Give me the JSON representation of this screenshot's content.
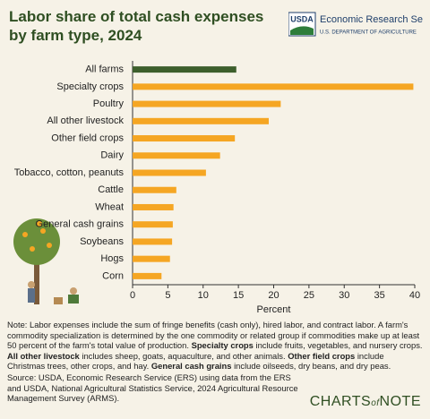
{
  "chart_data": {
    "type": "hbar",
    "title": "Labor share of total cash expenses by farm type, 2024",
    "categories": [
      "All farms",
      "Specialty crops",
      "Poultry",
      "All other livestock",
      "Other field crops",
      "Dairy",
      "Tobacco, cotton, peanuts",
      "Cattle",
      "Wheat",
      "General cash grains",
      "Soybeans",
      "Hogs",
      "Corn"
    ],
    "values": [
      14.7,
      39.8,
      21.0,
      19.3,
      14.5,
      12.4,
      10.4,
      6.2,
      5.8,
      5.7,
      5.6,
      5.3,
      4.1
    ],
    "colors": [
      "#3d5f2c",
      "#f5a623",
      "#f5a623",
      "#f5a623",
      "#f5a623",
      "#f5a623",
      "#f5a623",
      "#f5a623",
      "#f5a623",
      "#f5a623",
      "#f5a623",
      "#f5a623",
      "#f5a623"
    ],
    "xlabel": "Percent",
    "xlim": [
      0,
      40
    ],
    "xticks": [
      0,
      5,
      10,
      15,
      20,
      25,
      30,
      35,
      40
    ]
  },
  "logo": {
    "agency": "USDA",
    "service": "Economic Research Service",
    "department": "U.S. DEPARTMENT OF AGRICULTURE"
  },
  "note": [
    {
      "text": "Note: Labor expenses include the sum of fringe benefits (cash only), hired labor, and contract labor. A farm's commodity specialization is determined by the one commodity or related group if commodities make up at least 50 percent of the farm's total value of production. ",
      "bold": false
    },
    {
      "text": "Specialty crops",
      "bold": true
    },
    {
      "text": " include fruits, vegetables, and nursery crops. ",
      "bold": false
    },
    {
      "text": "All other livestock",
      "bold": true
    },
    {
      "text": " includes sheep, goats, aquaculture, and other animals. ",
      "bold": false
    },
    {
      "text": "Other field crops",
      "bold": true
    },
    {
      "text": " include Christmas trees, other crops, and hay. ",
      "bold": false
    },
    {
      "text": "General cash grains",
      "bold": true
    },
    {
      "text": " include oilseeds, dry beans, and dry peas.",
      "bold": false
    }
  ],
  "source": "Source: USDA, Economic Research Service (ERS) using data from the ERS and USDA, National Agricultural Statistics Service, 2024 Agricultural Resource Management Survey (ARMS).",
  "brand": {
    "first": "CHARTS",
    "middle": "of",
    "last": "NOTE"
  }
}
